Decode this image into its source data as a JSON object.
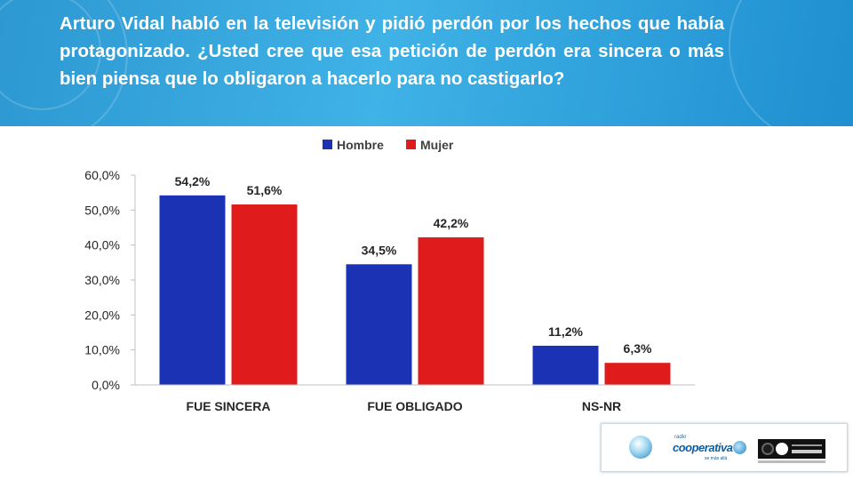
{
  "question": "Arturo Vidal habló en la televisión y pidió perdón por los hechos que había protagonizado. ¿Usted cree que esa petición de perdón era sincera o más bien piensa que lo obligaron a hacerlo para no castigarlo?",
  "colors": {
    "hombre": "#1c32b5",
    "mujer": "#e01b1b",
    "header": "#3aa9e0"
  },
  "chart_data": {
    "type": "bar",
    "title": "",
    "xlabel": "",
    "ylabel": "",
    "categories": [
      "FUE SINCERA",
      "FUE OBLIGADO",
      "NS-NR"
    ],
    "series": [
      {
        "name": "Hombre",
        "values": [
          54.2,
          34.5,
          11.2
        ],
        "labels": [
          "54,2%",
          "34,5%",
          "11,2%"
        ]
      },
      {
        "name": "Mujer",
        "values": [
          51.6,
          42.2,
          6.3
        ],
        "labels": [
          "51,6%",
          "42,2%",
          "6,3%"
        ]
      }
    ],
    "ylim": [
      0,
      60
    ],
    "yticks": [
      "0,0%",
      "10,0%",
      "20,0%",
      "30,0%",
      "40,0%",
      "50,0%",
      "60,0%"
    ],
    "grid": false,
    "legend": "top-center"
  },
  "logos": {
    "cooperativa_small": "radio",
    "cooperativa_name": "cooperativa",
    "cooperativa_tag": "se más allá"
  }
}
